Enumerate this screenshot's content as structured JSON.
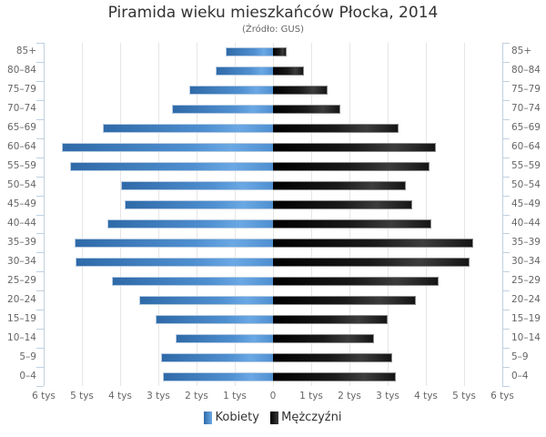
{
  "chart_data": {
    "type": "bar",
    "orientation": "horizontal-pyramid",
    "title": "Piramida wieku mieszkańców Płocka, 2014",
    "subtitle": "(Źródło: GUS)",
    "xlabel": "",
    "ylabel": "",
    "xlim": [
      -6000,
      6000
    ],
    "x_ticks": [
      "6 tys",
      "5 tys",
      "4 tys",
      "3 tys",
      "2 tys",
      "1 tys",
      "0",
      "1 tys",
      "2 tys",
      "3 tys",
      "4 tys",
      "5 tys",
      "6 tys"
    ],
    "grid": true,
    "legend_position": "bottom",
    "categories": [
      "85+",
      "80-84",
      "75-79",
      "70-74",
      "65-69",
      "60-64",
      "55-59",
      "50-54",
      "45-49",
      "40-44",
      "35-39",
      "30-34",
      "25-29",
      "20-24",
      "15-19",
      "10-14",
      "5-9",
      "0-4"
    ],
    "series": [
      {
        "name": "Kobiety",
        "side": "left",
        "color": "#4a86c8",
        "values": [
          1240,
          1500,
          2190,
          2640,
          4450,
          5520,
          5310,
          3980,
          3880,
          4330,
          5190,
          5170,
          4210,
          3500,
          3070,
          2550,
          2930,
          2880
        ]
      },
      {
        "name": "Mężczyźni",
        "side": "right",
        "color": "#111111",
        "values": [
          360,
          810,
          1430,
          1760,
          3290,
          4260,
          4100,
          3480,
          3640,
          4150,
          5240,
          5140,
          4330,
          3740,
          3000,
          2640,
          3120,
          3210
        ]
      }
    ]
  },
  "legend": {
    "female_label": "Kobiety",
    "male_label": "Mężczyźni"
  }
}
